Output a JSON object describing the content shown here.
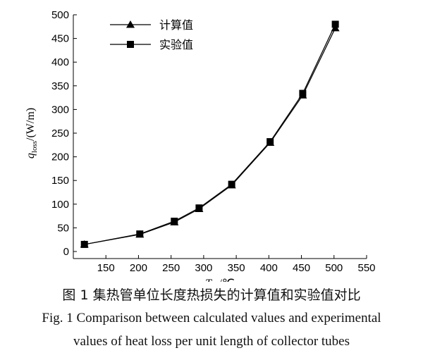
{
  "chart_data": {
    "type": "line",
    "x": [
      117,
      202,
      255,
      293,
      343,
      402,
      452,
      502
    ],
    "series": [
      {
        "name": "计算值",
        "marker": "triangle",
        "values": [
          15,
          36,
          62,
          90,
          140,
          230,
          330,
          472
        ]
      },
      {
        "name": "实验值",
        "marker": "square",
        "values": [
          15,
          37,
          64,
          92,
          142,
          232,
          334,
          480
        ]
      }
    ],
    "xlim": [
      100,
      550
    ],
    "ylim": [
      0,
      500
    ],
    "xticks": [
      150,
      200,
      250,
      300,
      350,
      400,
      450,
      500,
      550
    ],
    "yticks": [
      0,
      50,
      100,
      150,
      200,
      250,
      300,
      350,
      400,
      450,
      500
    ],
    "xlabel": {
      "main": "T",
      "sub": "av",
      "unit": "/℃"
    },
    "ylabel": {
      "main": "q",
      "sub": "loss",
      "unit": "/(W/m)"
    },
    "legend_position": "top-left",
    "grid": false,
    "color": "#000000"
  },
  "caption": {
    "zh": "图 1  集热管单位长度热损失的计算值和实验值对比",
    "en_line1": "Fig. 1  Comparison between calculated values and experimental",
    "en_line2": "values of heat loss per unit length of collector tubes"
  }
}
